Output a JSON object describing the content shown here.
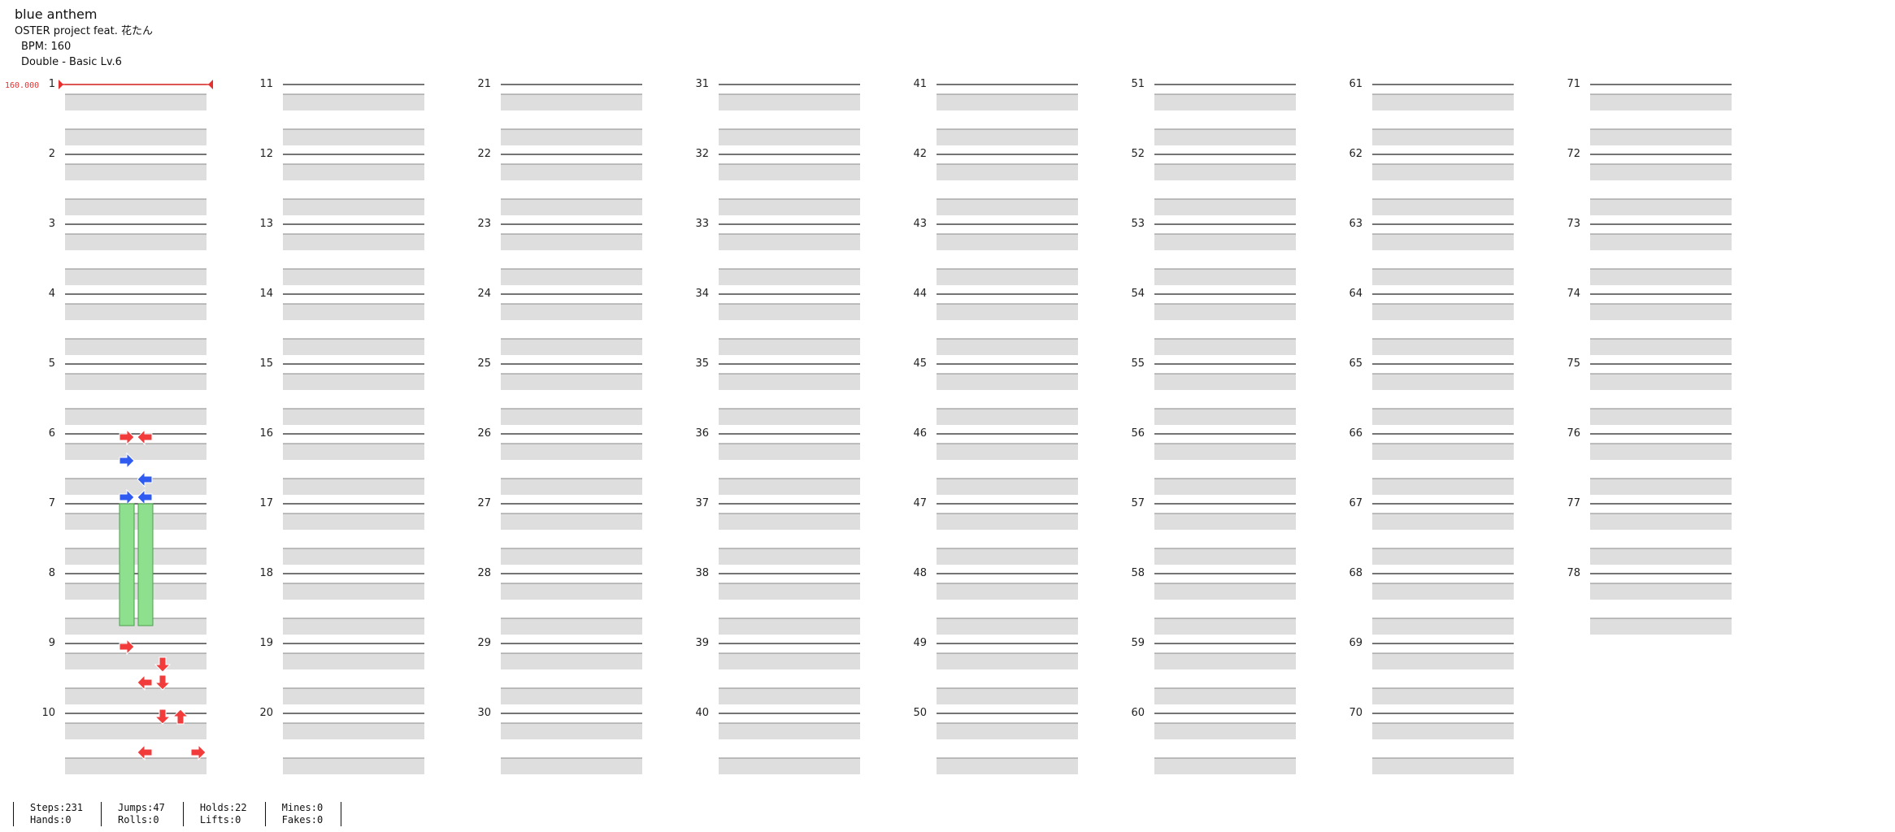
{
  "song": {
    "title": "blue anthem",
    "artist": "OSTER project feat. 花たん",
    "bpm_label": "BPM: 160",
    "difficulty": "Double - Basic  Lv.6"
  },
  "bpm_marker": "160.000",
  "measure_count": 78,
  "measures_per_column": 10,
  "colors": {
    "tap": "#f23b3b",
    "quarter_note": "#2f5bf0",
    "hold": "#8ee08e",
    "bpm_line": "#e53030"
  },
  "notes_visible": [
    {
      "measure": 6,
      "lane": "right-down-right",
      "color": "red"
    },
    {
      "measure": 7,
      "lane": "left-right",
      "color": "blue"
    },
    {
      "measure": 7,
      "type": "hold",
      "length_measures": 2
    }
  ],
  "stats": [
    {
      "top": "Steps:231",
      "bottom": "Hands:0"
    },
    {
      "top": "Jumps:47",
      "bottom": "Rolls:0"
    },
    {
      "top": "Holds:22",
      "bottom": "Lifts:0"
    },
    {
      "top": "Mines:0",
      "bottom": "Fakes:0"
    }
  ]
}
